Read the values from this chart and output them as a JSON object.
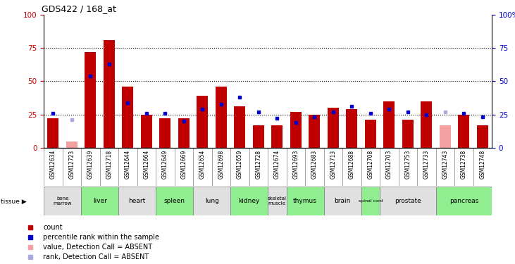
{
  "title": "GDS422 / 168_at",
  "samples": [
    "GSM12634",
    "GSM12723",
    "GSM12639",
    "GSM12718",
    "GSM12644",
    "GSM12664",
    "GSM12649",
    "GSM12669",
    "GSM12654",
    "GSM12698",
    "GSM12659",
    "GSM12728",
    "GSM12674",
    "GSM12693",
    "GSM12683",
    "GSM12713",
    "GSM12688",
    "GSM12708",
    "GSM12703",
    "GSM12753",
    "GSM12733",
    "GSM12743",
    "GSM12738",
    "GSM12748"
  ],
  "counts": [
    22,
    5,
    72,
    81,
    46,
    25,
    22,
    22,
    39,
    46,
    31,
    17,
    17,
    27,
    25,
    30,
    29,
    21,
    35,
    21,
    35,
    17,
    25,
    17
  ],
  "percentile_ranks": [
    26,
    21,
    54,
    63,
    34,
    26,
    26,
    20,
    29,
    33,
    38,
    27,
    22,
    19,
    23,
    27,
    31,
    26,
    29,
    27,
    25,
    27,
    26,
    23
  ],
  "absent_mask": [
    false,
    true,
    false,
    false,
    false,
    false,
    false,
    false,
    false,
    false,
    false,
    false,
    false,
    false,
    false,
    false,
    false,
    false,
    false,
    false,
    false,
    true,
    false,
    false
  ],
  "tissues": [
    {
      "label": "bone\nmarrow",
      "start": 0,
      "end": 2,
      "color": "#e0e0e0"
    },
    {
      "label": "liver",
      "start": 2,
      "end": 4,
      "color": "#90ee90"
    },
    {
      "label": "heart",
      "start": 4,
      "end": 6,
      "color": "#e0e0e0"
    },
    {
      "label": "spleen",
      "start": 6,
      "end": 8,
      "color": "#90ee90"
    },
    {
      "label": "lung",
      "start": 8,
      "end": 10,
      "color": "#e0e0e0"
    },
    {
      "label": "kidney",
      "start": 10,
      "end": 12,
      "color": "#90ee90"
    },
    {
      "label": "skeletal\nmuscle",
      "start": 12,
      "end": 13,
      "color": "#e0e0e0"
    },
    {
      "label": "thymus",
      "start": 13,
      "end": 15,
      "color": "#90ee90"
    },
    {
      "label": "brain",
      "start": 15,
      "end": 17,
      "color": "#e0e0e0"
    },
    {
      "label": "spinal cord",
      "start": 17,
      "end": 18,
      "color": "#90ee90"
    },
    {
      "label": "prostate",
      "start": 18,
      "end": 21,
      "color": "#e0e0e0"
    },
    {
      "label": "pancreas",
      "start": 21,
      "end": 24,
      "color": "#90ee90"
    }
  ],
  "bar_color_normal": "#c00000",
  "bar_color_absent": "#f4a0a0",
  "rank_color_normal": "#0000cc",
  "rank_color_absent": "#aaaadd",
  "ylim": [
    0,
    100
  ],
  "yticks": [
    0,
    25,
    50,
    75,
    100
  ],
  "sample_bg_color": "#d0d0d0",
  "xlabel_color": "#cc0000",
  "right_ylabel_color": "#0000cc"
}
